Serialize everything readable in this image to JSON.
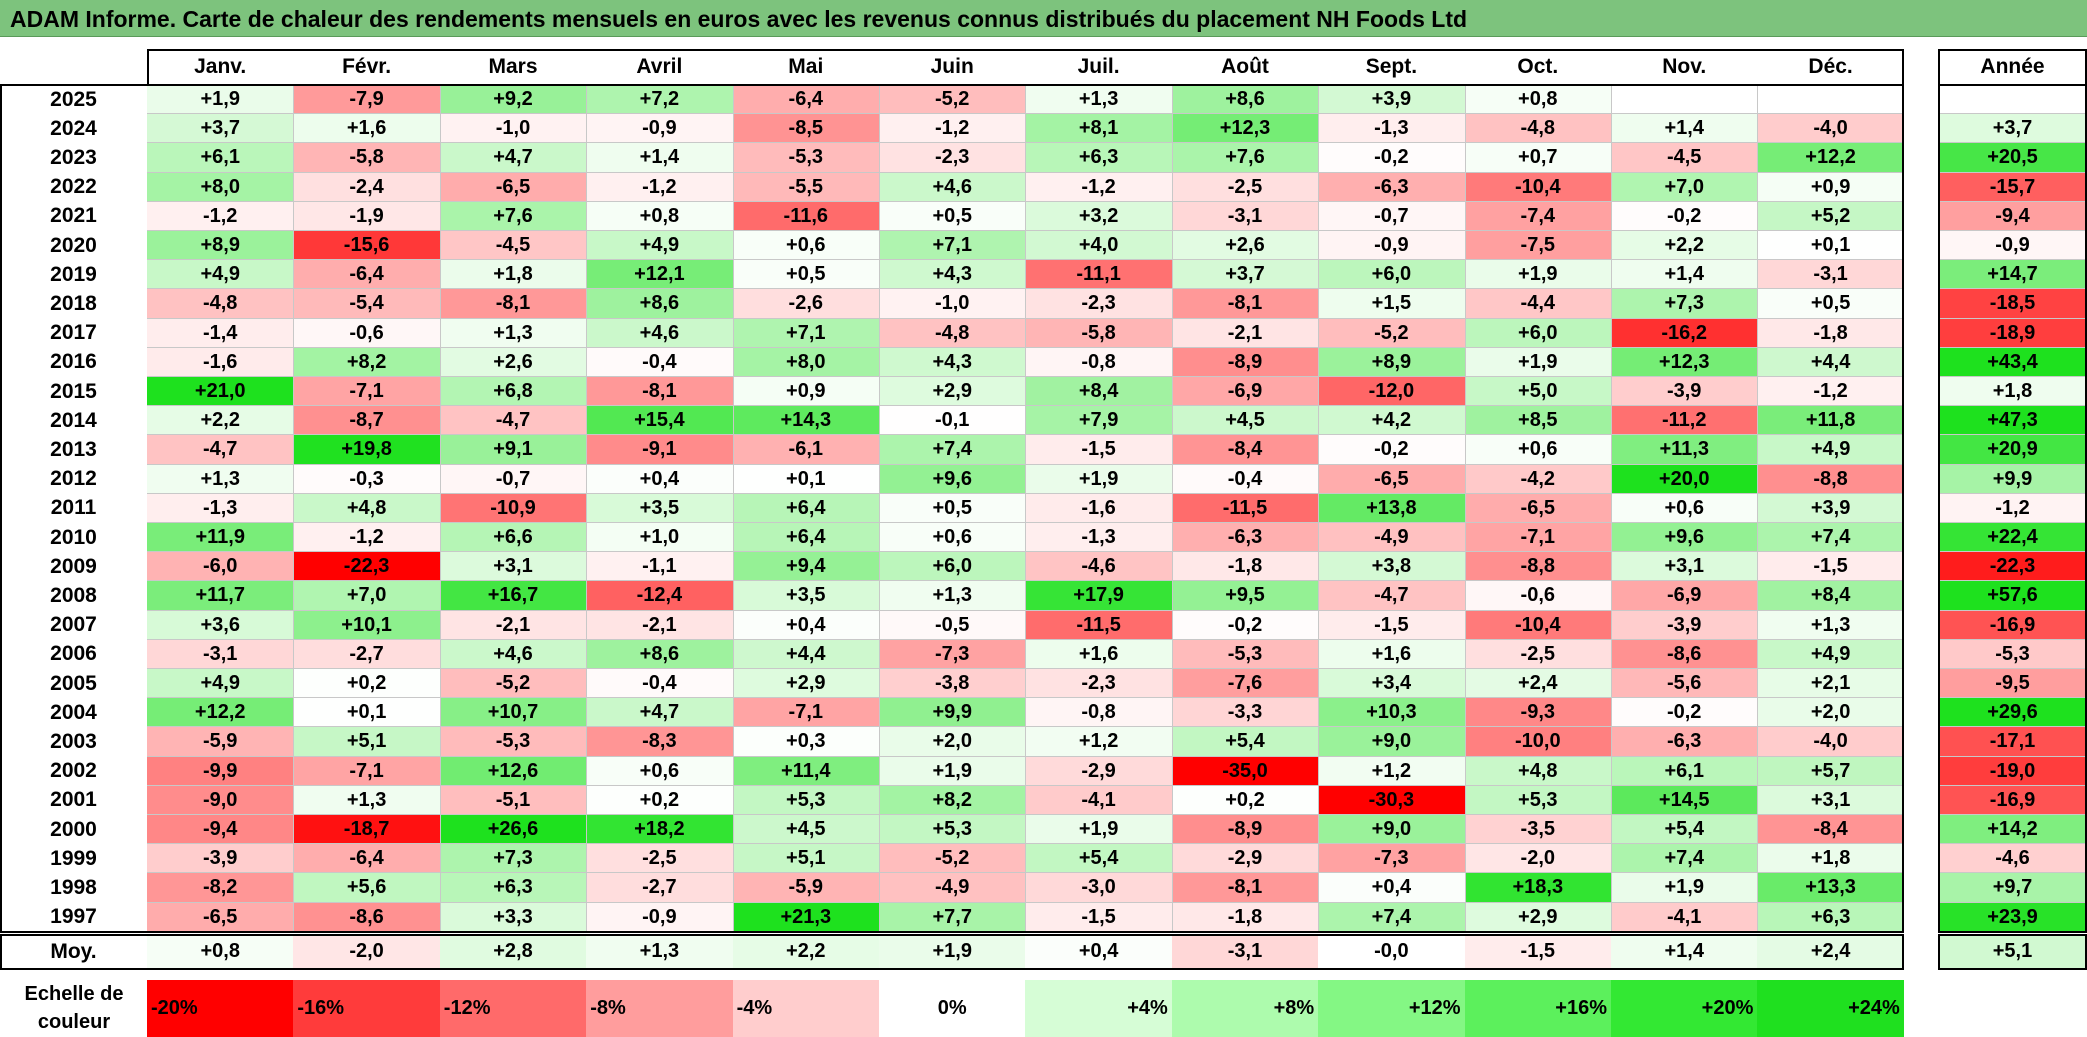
{
  "title": "ADAM Informe. Carte de chaleur des rendements mensuels en euros avec les revenus connus distribués du placement NH Foods Ltd",
  "chart_data": {
    "type": "heatmap",
    "months": [
      "Janv.",
      "Févr.",
      "Mars",
      "Avril",
      "Mai",
      "Juin",
      "Juil.",
      "Août",
      "Sept.",
      "Oct.",
      "Nov.",
      "Déc."
    ],
    "year_header": "Année",
    "rows": [
      {
        "year": "2025",
        "values": [
          "+1,9",
          "-7,9",
          "+9,2",
          "+7,2",
          "-6,4",
          "-5,2",
          "+1,3",
          "+8,6",
          "+3,9",
          "+0,8",
          "",
          ""
        ],
        "annual": ""
      },
      {
        "year": "2024",
        "values": [
          "+3,7",
          "+1,6",
          "-1,0",
          "-0,9",
          "-8,5",
          "-1,2",
          "+8,1",
          "+12,3",
          "-1,3",
          "-4,8",
          "+1,4",
          "-4,0"
        ],
        "annual": "+3,7"
      },
      {
        "year": "2023",
        "values": [
          "+6,1",
          "-5,8",
          "+4,7",
          "+1,4",
          "-5,3",
          "-2,3",
          "+6,3",
          "+7,6",
          "-0,2",
          "+0,7",
          "-4,5",
          "+12,2"
        ],
        "annual": "+20,5"
      },
      {
        "year": "2022",
        "values": [
          "+8,0",
          "-2,4",
          "-6,5",
          "-1,2",
          "-5,5",
          "+4,6",
          "-1,2",
          "-2,5",
          "-6,3",
          "-10,4",
          "+7,0",
          "+0,9"
        ],
        "annual": "-15,7"
      },
      {
        "year": "2021",
        "values": [
          "-1,2",
          "-1,9",
          "+7,6",
          "+0,8",
          "-11,6",
          "+0,5",
          "+3,2",
          "-3,1",
          "-0,7",
          "-7,4",
          "-0,2",
          "+5,2"
        ],
        "annual": "-9,4"
      },
      {
        "year": "2020",
        "values": [
          "+8,9",
          "-15,6",
          "-4,5",
          "+4,9",
          "+0,6",
          "+7,1",
          "+4,0",
          "+2,6",
          "-0,9",
          "-7,5",
          "+2,2",
          "+0,1"
        ],
        "annual": "-0,9"
      },
      {
        "year": "2019",
        "values": [
          "+4,9",
          "-6,4",
          "+1,8",
          "+12,1",
          "+0,5",
          "+4,3",
          "-11,1",
          "+3,7",
          "+6,0",
          "+1,9",
          "+1,4",
          "-3,1"
        ],
        "annual": "+14,7"
      },
      {
        "year": "2018",
        "values": [
          "-4,8",
          "-5,4",
          "-8,1",
          "+8,6",
          "-2,6",
          "-1,0",
          "-2,3",
          "-8,1",
          "+1,5",
          "-4,4",
          "+7,3",
          "+0,5"
        ],
        "annual": "-18,5"
      },
      {
        "year": "2017",
        "values": [
          "-1,4",
          "-0,6",
          "+1,3",
          "+4,6",
          "+7,1",
          "-4,8",
          "-5,8",
          "-2,1",
          "-5,2",
          "+6,0",
          "-16,2",
          "-1,8"
        ],
        "annual": "-18,9"
      },
      {
        "year": "2016",
        "values": [
          "-1,6",
          "+8,2",
          "+2,6",
          "-0,4",
          "+8,0",
          "+4,3",
          "-0,8",
          "-8,9",
          "+8,9",
          "+1,9",
          "+12,3",
          "+4,4"
        ],
        "annual": "+43,4"
      },
      {
        "year": "2015",
        "values": [
          "+21,0",
          "-7,1",
          "+6,8",
          "-8,1",
          "+0,9",
          "+2,9",
          "+8,4",
          "-6,9",
          "-12,0",
          "+5,0",
          "-3,9",
          "-1,2"
        ],
        "annual": "+1,8"
      },
      {
        "year": "2014",
        "values": [
          "+2,2",
          "-8,7",
          "-4,7",
          "+15,4",
          "+14,3",
          "-0,1",
          "+7,9",
          "+4,5",
          "+4,2",
          "+8,5",
          "-11,2",
          "+11,8"
        ],
        "annual": "+47,3"
      },
      {
        "year": "2013",
        "values": [
          "-4,7",
          "+19,8",
          "+9,1",
          "-9,1",
          "-6,1",
          "+7,4",
          "-1,5",
          "-8,4",
          "-0,2",
          "+0,6",
          "+11,3",
          "+4,9"
        ],
        "annual": "+20,9"
      },
      {
        "year": "2012",
        "values": [
          "+1,3",
          "-0,3",
          "-0,7",
          "+0,4",
          "+0,1",
          "+9,6",
          "+1,9",
          "-0,4",
          "-6,5",
          "-4,2",
          "+20,0",
          "-8,8"
        ],
        "annual": "+9,9"
      },
      {
        "year": "2011",
        "values": [
          "-1,3",
          "+4,8",
          "-10,9",
          "+3,5",
          "+6,4",
          "+0,5",
          "-1,6",
          "-11,5",
          "+13,8",
          "-6,5",
          "+0,6",
          "+3,9"
        ],
        "annual": "-1,2"
      },
      {
        "year": "2010",
        "values": [
          "+11,9",
          "-1,2",
          "+6,6",
          "+1,0",
          "+6,4",
          "+0,6",
          "-1,3",
          "-6,3",
          "-4,9",
          "-7,1",
          "+9,6",
          "+7,4"
        ],
        "annual": "+22,4"
      },
      {
        "year": "2009",
        "values": [
          "-6,0",
          "-22,3",
          "+3,1",
          "-1,1",
          "+9,4",
          "+6,0",
          "-4,6",
          "-1,8",
          "+3,8",
          "-8,8",
          "+3,1",
          "-1,5"
        ],
        "annual": "-22,3"
      },
      {
        "year": "2008",
        "values": [
          "+11,7",
          "+7,0",
          "+16,7",
          "-12,4",
          "+3,5",
          "+1,3",
          "+17,9",
          "+9,5",
          "-4,7",
          "-0,6",
          "-6,9",
          "+8,4"
        ],
        "annual": "+57,6"
      },
      {
        "year": "2007",
        "values": [
          "+3,6",
          "+10,1",
          "-2,1",
          "-2,1",
          "+0,4",
          "-0,5",
          "-11,5",
          "-0,2",
          "-1,5",
          "-10,4",
          "-3,9",
          "+1,3"
        ],
        "annual": "-16,9"
      },
      {
        "year": "2006",
        "values": [
          "-3,1",
          "-2,7",
          "+4,6",
          "+8,6",
          "+4,4",
          "-7,3",
          "+1,6",
          "-5,3",
          "+1,6",
          "-2,5",
          "-8,6",
          "+4,9"
        ],
        "annual": "-5,3"
      },
      {
        "year": "2005",
        "values": [
          "+4,9",
          "+0,2",
          "-5,2",
          "-0,4",
          "+2,9",
          "-3,8",
          "-2,3",
          "-7,6",
          "+3,4",
          "+2,4",
          "-5,6",
          "+2,1"
        ],
        "annual": "-9,5"
      },
      {
        "year": "2004",
        "values": [
          "+12,2",
          "+0,1",
          "+10,7",
          "+4,7",
          "-7,1",
          "+9,9",
          "-0,8",
          "-3,3",
          "+10,3",
          "-9,3",
          "-0,2",
          "+2,0"
        ],
        "annual": "+29,6"
      },
      {
        "year": "2003",
        "values": [
          "-5,9",
          "+5,1",
          "-5,3",
          "-8,3",
          "+0,3",
          "+2,0",
          "+1,2",
          "+5,4",
          "+9,0",
          "-10,0",
          "-6,3",
          "-4,0"
        ],
        "annual": "-17,1"
      },
      {
        "year": "2002",
        "values": [
          "-9,9",
          "-7,1",
          "+12,6",
          "+0,6",
          "+11,4",
          "+1,9",
          "-2,9",
          "-35,0",
          "+1,2",
          "+4,8",
          "+6,1",
          "+5,7"
        ],
        "annual": "-19,0"
      },
      {
        "year": "2001",
        "values": [
          "-9,0",
          "+1,3",
          "-5,1",
          "+0,2",
          "+5,3",
          "+8,2",
          "-4,1",
          "+0,2",
          "-30,3",
          "+5,3",
          "+14,5",
          "+3,1"
        ],
        "annual": "-16,9"
      },
      {
        "year": "2000",
        "values": [
          "-9,4",
          "-18,7",
          "+26,6",
          "+18,2",
          "+4,5",
          "+5,3",
          "+1,9",
          "-8,9",
          "+9,0",
          "-3,5",
          "+5,4",
          "-8,4"
        ],
        "annual": "+14,2"
      },
      {
        "year": "1999",
        "values": [
          "-3,9",
          "-6,4",
          "+7,3",
          "-2,5",
          "+5,1",
          "-5,2",
          "+5,4",
          "-2,9",
          "-7,3",
          "-2,0",
          "+7,4",
          "+1,8"
        ],
        "annual": "-4,6"
      },
      {
        "year": "1998",
        "values": [
          "-8,2",
          "+5,6",
          "+6,3",
          "-2,7",
          "-5,9",
          "-4,9",
          "-3,0",
          "-8,1",
          "+0,4",
          "+18,3",
          "+1,9",
          "+13,3"
        ],
        "annual": "+9,7"
      },
      {
        "year": "1997",
        "values": [
          "-6,5",
          "-8,6",
          "+3,3",
          "-0,9",
          "+21,3",
          "+7,7",
          "-1,5",
          "-1,8",
          "+7,4",
          "+2,9",
          "-4,1",
          "+6,3"
        ],
        "annual": "+23,9"
      }
    ],
    "average": {
      "label": "Moy.",
      "values": [
        "+0,8",
        "-2,0",
        "+2,8",
        "+1,3",
        "+2,2",
        "+1,9",
        "+0,4",
        "-3,1",
        "-0,0",
        "-1,5",
        "+1,4",
        "+2,4"
      ],
      "annual": "+5,1"
    },
    "color_scale": {
      "label_line1": "Echelle de",
      "label_line2": "couleur",
      "stops": [
        {
          "label": "-20%",
          "value": -20,
          "color": "#ff0000"
        },
        {
          "label": "-16%",
          "value": -16,
          "color": "#ff3b3b"
        },
        {
          "label": "-12%",
          "value": -12,
          "color": "#ff6a6a"
        },
        {
          "label": "-8%",
          "value": -8,
          "color": "#ff9d9d"
        },
        {
          "label": "-4%",
          "value": -4,
          "color": "#ffcdcd"
        },
        {
          "label": "0%",
          "value": 0,
          "color": "#ffffff"
        },
        {
          "label": "+4%",
          "value": 4,
          "color": "#d6fdd6"
        },
        {
          "label": "+8%",
          "value": 8,
          "color": "#adfbad"
        },
        {
          "label": "+12%",
          "value": 12,
          "color": "#84f784"
        },
        {
          "label": "+16%",
          "value": 16,
          "color": "#5cf05c"
        },
        {
          "label": "+20%",
          "value": 20,
          "color": "#33e833"
        },
        {
          "label": "+24%",
          "value": 24,
          "color": "#1fe01f"
        }
      ]
    }
  }
}
